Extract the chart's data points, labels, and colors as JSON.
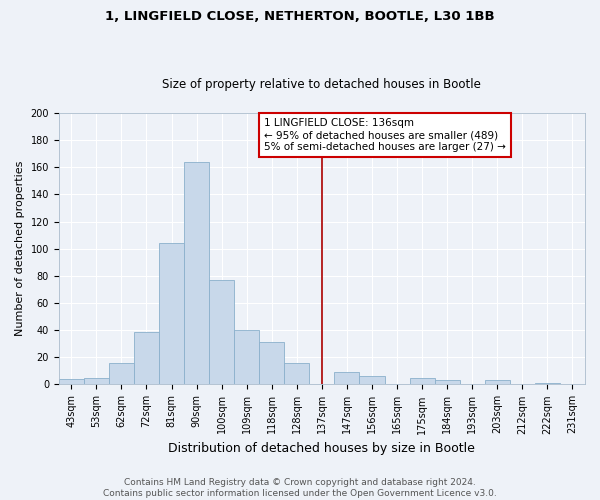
{
  "title1": "1, LINGFIELD CLOSE, NETHERTON, BOOTLE, L30 1BB",
  "title2": "Size of property relative to detached houses in Bootle",
  "xlabel": "Distribution of detached houses by size in Bootle",
  "ylabel": "Number of detached properties",
  "bin_labels": [
    "43sqm",
    "53sqm",
    "62sqm",
    "72sqm",
    "81sqm",
    "90sqm",
    "100sqm",
    "109sqm",
    "118sqm",
    "128sqm",
    "137sqm",
    "147sqm",
    "156sqm",
    "165sqm",
    "175sqm",
    "184sqm",
    "193sqm",
    "203sqm",
    "212sqm",
    "222sqm",
    "231sqm"
  ],
  "bar_heights": [
    4,
    5,
    16,
    39,
    104,
    164,
    77,
    40,
    31,
    16,
    0,
    9,
    6,
    0,
    5,
    3,
    0,
    3,
    0,
    1,
    0
  ],
  "bar_color": "#c8d8ea",
  "bar_edge_color": "#8ab0cc",
  "vline_idx": 10,
  "vline_color": "#aa0000",
  "annotation_text": "1 LINGFIELD CLOSE: 136sqm\n← 95% of detached houses are smaller (489)\n5% of semi-detached houses are larger (27) →",
  "ylim": [
    0,
    200
  ],
  "yticks": [
    0,
    20,
    40,
    60,
    80,
    100,
    120,
    140,
    160,
    180,
    200
  ],
  "footer1": "Contains HM Land Registry data © Crown copyright and database right 2024.",
  "footer2": "Contains public sector information licensed under the Open Government Licence v3.0.",
  "bg_color": "#eef2f8",
  "grid_color": "#ffffff",
  "title1_fontsize": 9.5,
  "title2_fontsize": 8.5,
  "xlabel_fontsize": 9,
  "ylabel_fontsize": 8,
  "tick_fontsize": 7,
  "footer_fontsize": 6.5,
  "ann_fontsize": 7.5
}
